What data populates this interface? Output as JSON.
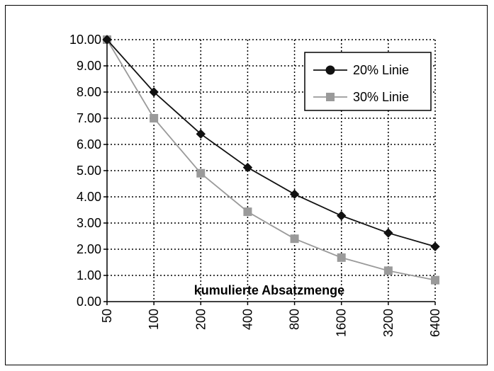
{
  "chart_data": {
    "type": "line",
    "x": [
      50,
      100,
      200,
      400,
      800,
      1600,
      3200,
      6400
    ],
    "x_tick_labels": [
      "50",
      "100",
      "200",
      "400",
      "800",
      "1600",
      "3200",
      "6400"
    ],
    "xscale": "log2",
    "xlabel": "kumulierte Absatzmenge",
    "ylabel": "",
    "title": "",
    "ylim": [
      0,
      10
    ],
    "y_tick_labels": [
      "0.00",
      "1.00",
      "2.00",
      "3.00",
      "4.00",
      "5.00",
      "6.00",
      "7.00",
      "8.00",
      "9.00",
      "10.00"
    ],
    "grid": "dotted",
    "legend_position": "top-right",
    "series": [
      {
        "name": "20% Linie",
        "values": [
          10.0,
          8.0,
          6.4,
          5.12,
          4.1,
          3.28,
          2.62,
          2.1
        ],
        "color": "#111111",
        "marker": "diamond"
      },
      {
        "name": "30% Linie",
        "values": [
          10.0,
          7.0,
          4.9,
          3.43,
          2.4,
          1.68,
          1.18,
          0.82
        ],
        "color": "#9a9a9a",
        "marker": "square"
      }
    ]
  }
}
